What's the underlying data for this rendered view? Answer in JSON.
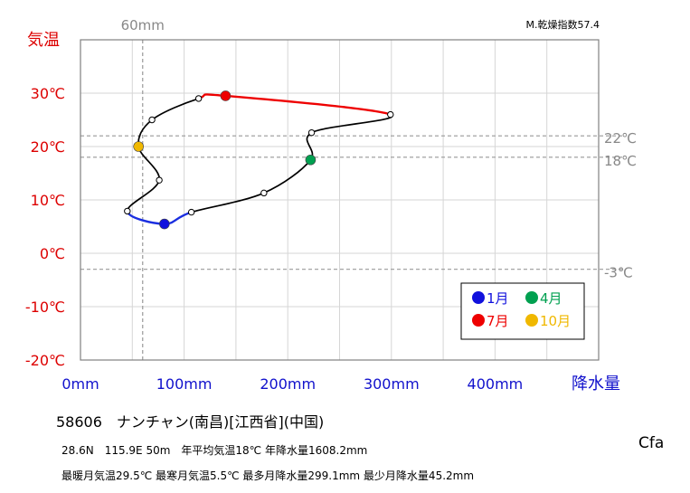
{
  "chart_data": {
    "type": "climograph",
    "ylabel": "気温",
    "xlabel": "降水量",
    "y_ticks": [
      "30℃",
      "20℃",
      "10℃",
      "0℃",
      "-10℃",
      "-20℃"
    ],
    "y_tick_values": [
      30,
      20,
      10,
      0,
      -10,
      -20
    ],
    "x_ticks": [
      "0mm",
      "100mm",
      "200mm",
      "300mm",
      "400mm"
    ],
    "x_tick_values": [
      0,
      100,
      200,
      300,
      400
    ],
    "xlim": [
      0,
      500
    ],
    "ylim": [
      -20,
      40
    ],
    "ref_vertical": {
      "value": 60,
      "label": "60mm"
    },
    "ref_horizontal": [
      {
        "value": 22,
        "label": "22℃"
      },
      {
        "value": 18,
        "label": "18℃"
      },
      {
        "value": -3,
        "label": "-3℃"
      }
    ],
    "aridity_index": "M.乾燥指数57.4",
    "months": [
      {
        "month": 1,
        "precip": 81,
        "temp": 5.5
      },
      {
        "month": 2,
        "precip": 107,
        "temp": 7.7
      },
      {
        "month": 3,
        "precip": 177,
        "temp": 11.3
      },
      {
        "month": 4,
        "precip": 222,
        "temp": 17.5
      },
      {
        "month": 5,
        "precip": 223,
        "temp": 22.6
      },
      {
        "month": 6,
        "precip": 299.1,
        "temp": 26.0
      },
      {
        "month": 7,
        "precip": 140,
        "temp": 29.5
      },
      {
        "month": 8,
        "precip": 114,
        "temp": 29.0
      },
      {
        "month": 9,
        "precip": 69,
        "temp": 25.0
      },
      {
        "month": 10,
        "precip": 56,
        "temp": 20.0
      },
      {
        "month": 11,
        "precip": 76,
        "temp": 13.7
      },
      {
        "month": 12,
        "precip": 45.2,
        "temp": 7.9
      }
    ],
    "legend": [
      {
        "label": "1月",
        "color": "#1111dd",
        "month": 1
      },
      {
        "label": "4月",
        "color": "#00a050",
        "month": 4
      },
      {
        "label": "7月",
        "color": "#ee0000",
        "month": 7
      },
      {
        "label": "10月",
        "color": "#f0b800",
        "month": 10
      }
    ],
    "legend_text_colors": {
      "1": "#1111dd",
      "4": "#00a050",
      "7": "#ee0000",
      "10": "#f0b800"
    },
    "colors": {
      "temp_axis": "#dd0000",
      "precip_axis": "#1111cc",
      "winter_segment": "#1a2ee0",
      "summer_segment": "#ee0000",
      "curve": "#000000",
      "reference": "#999999"
    }
  },
  "station": {
    "title": "58606　ナンチャン(南昌)[江西省](中国)",
    "info1": "28.6N　115.9E 50m　年平均気温18℃ 年降水量1608.2mm",
    "info2": "最暖月気温29.5℃ 最寒月気温5.5℃ 最多月降水量299.1mm 最少月降水量45.2mm",
    "climate": "Cfa"
  }
}
